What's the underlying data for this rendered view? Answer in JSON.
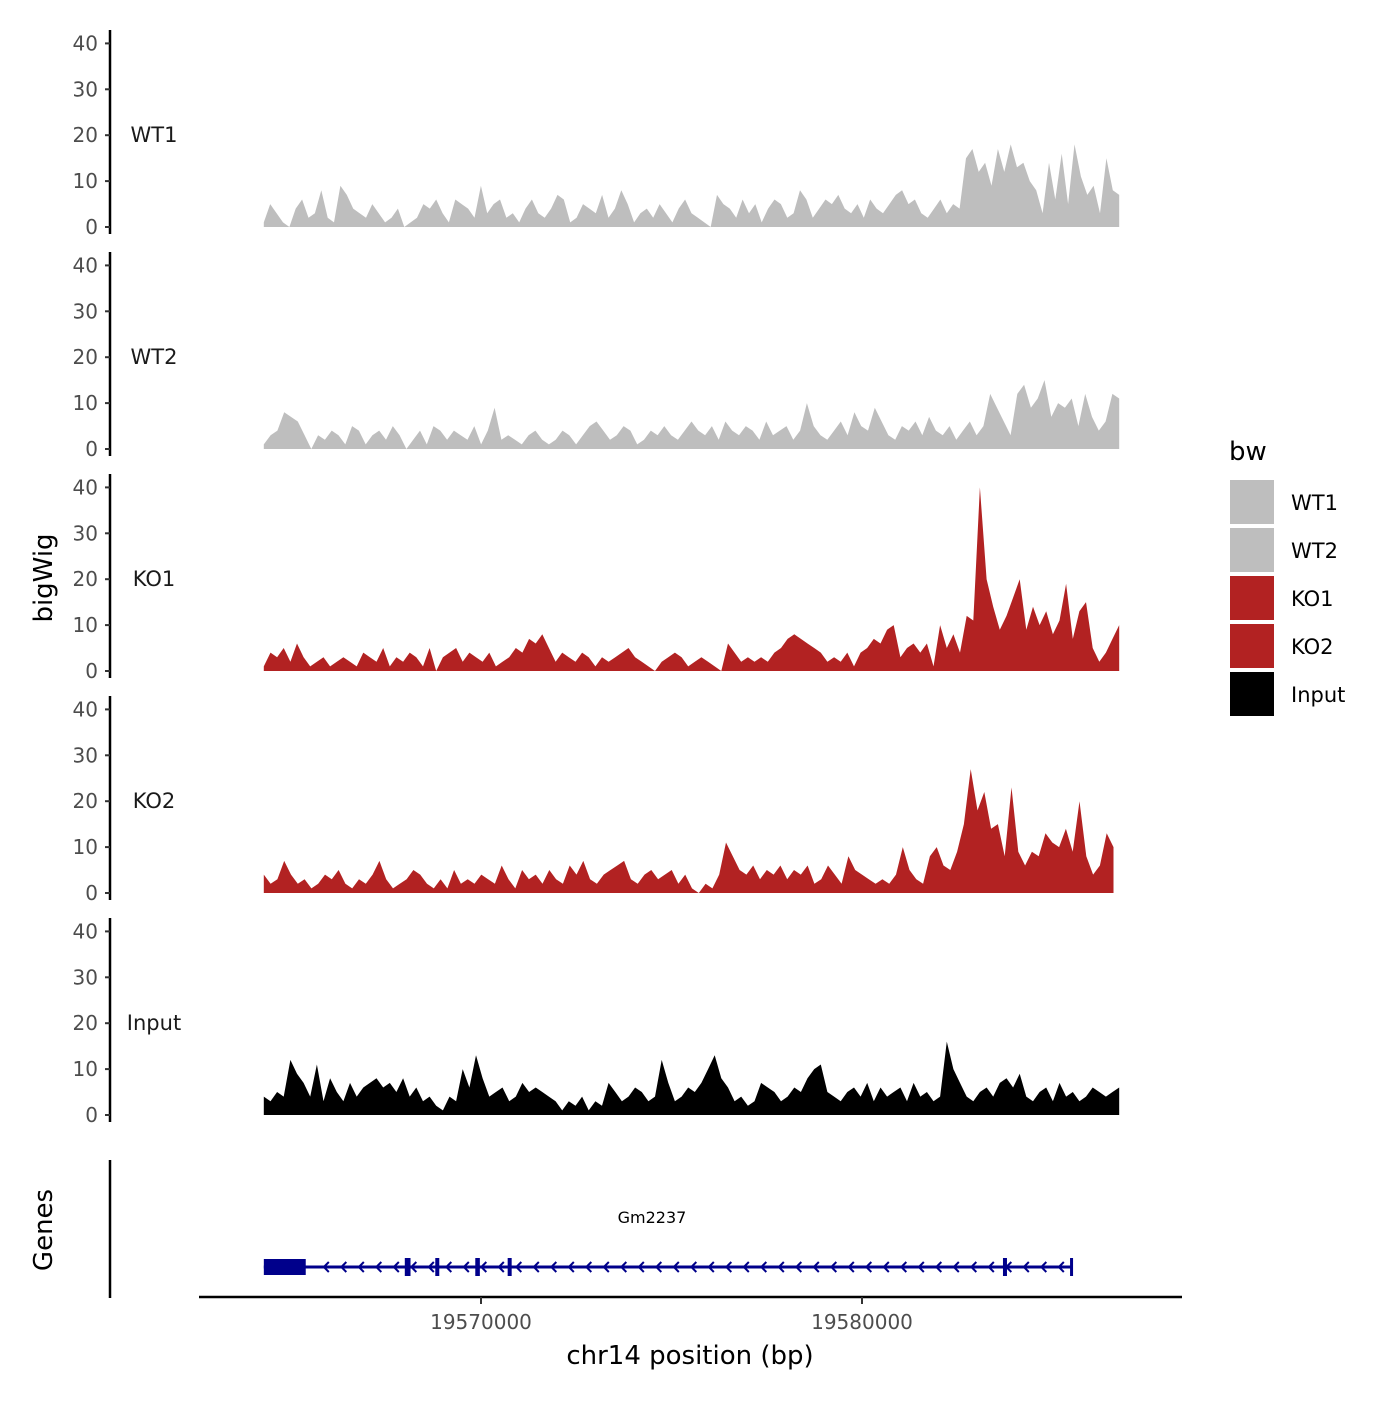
{
  "chart_data": {
    "type": "area",
    "title": "",
    "ylabel": "bigWig",
    "xlabel": "chr14 position (bp)",
    "genes_label": "Genes",
    "ylim": [
      0,
      40
    ],
    "y_ticks": [
      "0",
      "10",
      "20",
      "30",
      "40"
    ],
    "x_range": [
      19563000,
      19588000
    ],
    "x_ticks": [
      {
        "value": 19570000,
        "label": "19570000"
      },
      {
        "value": 19580000,
        "label": "19580000"
      }
    ],
    "legend": {
      "title": "bw",
      "position": "right",
      "entries": [
        {
          "label": "WT1",
          "color": "#bebebe"
        },
        {
          "label": "WT2",
          "color": "#bebebe"
        },
        {
          "label": "KO1",
          "color": "#b22222"
        },
        {
          "label": "KO2",
          "color": "#b22222"
        },
        {
          "label": "Input",
          "color": "#000000"
        }
      ]
    },
    "series": [
      {
        "name": "WT1",
        "color": "#bebebe",
        "x_start": 19564300,
        "x_end": 19586750,
        "values": [
          1,
          5,
          3,
          1,
          0,
          4,
          6,
          2,
          3,
          8,
          2,
          1,
          9,
          7,
          4,
          3,
          2,
          5,
          3,
          1,
          2,
          4,
          0,
          1,
          2,
          5,
          4,
          6,
          3,
          1,
          6,
          5,
          4,
          2,
          9,
          3,
          5,
          6,
          2,
          3,
          1,
          4,
          6,
          3,
          2,
          4,
          7,
          6,
          1,
          2,
          5,
          4,
          3,
          7,
          2,
          4,
          8,
          5,
          1,
          3,
          4,
          2,
          5,
          3,
          1,
          4,
          6,
          3,
          2,
          1,
          0,
          7,
          5,
          4,
          2,
          6,
          3,
          5,
          1,
          4,
          6,
          5,
          2,
          3,
          8,
          6,
          2,
          4,
          6,
          5,
          7,
          4,
          3,
          5,
          2,
          6,
          4,
          3,
          5,
          7,
          8,
          5,
          6,
          3,
          2,
          4,
          6,
          3,
          5,
          4,
          15,
          17,
          12,
          14,
          9,
          17,
          12,
          18,
          13,
          14,
          10,
          8,
          3,
          14,
          6,
          16,
          5,
          18,
          11,
          7,
          9,
          3,
          15,
          8,
          7
        ]
      },
      {
        "name": "WT2",
        "color": "#bebebe",
        "x_start": 19564300,
        "x_end": 19586750,
        "values": [
          1,
          3,
          4,
          8,
          7,
          6,
          3,
          0,
          3,
          2,
          4,
          3,
          1,
          5,
          4,
          1,
          3,
          4,
          2,
          5,
          3,
          0,
          2,
          4,
          1,
          5,
          4,
          2,
          4,
          3,
          2,
          5,
          1,
          4,
          9,
          2,
          3,
          2,
          1,
          3,
          4,
          2,
          1,
          2,
          4,
          3,
          1,
          3,
          5,
          6,
          4,
          2,
          3,
          5,
          4,
          1,
          2,
          4,
          3,
          5,
          3,
          2,
          4,
          6,
          4,
          3,
          5,
          2,
          6,
          4,
          3,
          5,
          4,
          2,
          6,
          3,
          4,
          5,
          2,
          4,
          10,
          5,
          3,
          2,
          4,
          6,
          3,
          8,
          5,
          4,
          9,
          6,
          3,
          2,
          5,
          4,
          6,
          3,
          7,
          4,
          3,
          5,
          2,
          4,
          6,
          3,
          5,
          12,
          9,
          6,
          3,
          12,
          14,
          9,
          11,
          15,
          7,
          10,
          9,
          11,
          5,
          12,
          7,
          4,
          6,
          12,
          11
        ]
      },
      {
        "name": "KO1",
        "color": "#b22222",
        "x_start": 19564300,
        "x_end": 19586750,
        "values": [
          1,
          4,
          3,
          5,
          2,
          6,
          3,
          1,
          2,
          3,
          1,
          2,
          3,
          2,
          1,
          4,
          3,
          2,
          5,
          1,
          3,
          2,
          4,
          3,
          1,
          5,
          0,
          3,
          4,
          5,
          2,
          4,
          3,
          2,
          4,
          1,
          2,
          3,
          5,
          4,
          7,
          6,
          8,
          5,
          2,
          4,
          3,
          2,
          4,
          3,
          1,
          3,
          2,
          3,
          4,
          5,
          3,
          2,
          1,
          0,
          2,
          3,
          4,
          3,
          1,
          2,
          3,
          2,
          1,
          0,
          6,
          4,
          2,
          3,
          2,
          3,
          2,
          4,
          5,
          7,
          8,
          7,
          6,
          5,
          4,
          2,
          3,
          2,
          4,
          1,
          4,
          5,
          7,
          6,
          9,
          10,
          3,
          5,
          6,
          4,
          6,
          1,
          10,
          5,
          8,
          4,
          12,
          11,
          40,
          20,
          14,
          9,
          12,
          16,
          20,
          9,
          14,
          10,
          13,
          8,
          11,
          19,
          7,
          13,
          15,
          5,
          2,
          4,
          7,
          10
        ]
      },
      {
        "name": "KO2",
        "color": "#b22222",
        "x_start": 19564300,
        "x_end": 19586600,
        "values": [
          4,
          2,
          3,
          7,
          4,
          2,
          3,
          1,
          2,
          4,
          3,
          5,
          2,
          1,
          3,
          2,
          4,
          7,
          3,
          1,
          2,
          3,
          5,
          4,
          2,
          1,
          3,
          1,
          5,
          2,
          3,
          2,
          4,
          3,
          2,
          6,
          3,
          1,
          5,
          3,
          4,
          2,
          5,
          3,
          2,
          6,
          4,
          7,
          3,
          2,
          4,
          5,
          6,
          7,
          3,
          2,
          4,
          5,
          3,
          4,
          5,
          2,
          4,
          1,
          0,
          2,
          1,
          4,
          11,
          8,
          5,
          4,
          6,
          3,
          5,
          4,
          6,
          3,
          5,
          4,
          6,
          2,
          3,
          6,
          4,
          2,
          8,
          5,
          4,
          3,
          2,
          3,
          2,
          4,
          10,
          5,
          3,
          2,
          8,
          10,
          6,
          5,
          9,
          15,
          27,
          18,
          22,
          14,
          15,
          8,
          23,
          9,
          6,
          9,
          8,
          13,
          11,
          10,
          14,
          9,
          20,
          8,
          4,
          6,
          13,
          10
        ]
      },
      {
        "name": "Input",
        "color": "#000000",
        "x_start": 19564300,
        "x_end": 19586750,
        "values": [
          4,
          3,
          5,
          4,
          12,
          9,
          7,
          4,
          11,
          3,
          8,
          5,
          3,
          7,
          4,
          6,
          7,
          8,
          6,
          7,
          5,
          8,
          4,
          6,
          3,
          4,
          2,
          1,
          4,
          3,
          10,
          6,
          13,
          8,
          4,
          5,
          6,
          3,
          4,
          7,
          5,
          6,
          5,
          4,
          3,
          1,
          3,
          2,
          4,
          1,
          3,
          2,
          7,
          5,
          3,
          4,
          6,
          5,
          3,
          4,
          12,
          7,
          3,
          4,
          6,
          5,
          7,
          10,
          13,
          8,
          6,
          3,
          4,
          2,
          3,
          7,
          6,
          5,
          3,
          4,
          6,
          5,
          8,
          10,
          11,
          5,
          4,
          3,
          5,
          6,
          4,
          7,
          3,
          6,
          4,
          5,
          6,
          3,
          7,
          4,
          5,
          3,
          4,
          16,
          10,
          7,
          4,
          3,
          5,
          6,
          4,
          7,
          8,
          6,
          9,
          4,
          3,
          5,
          6,
          3,
          7,
          4,
          5,
          3,
          4,
          6,
          5,
          4,
          5,
          6
        ]
      }
    ],
    "gene_track": {
      "gene_name": "Gm2237",
      "color": "#00008b",
      "strand": "-",
      "start": 19564300,
      "end": 19585500,
      "exons": [
        {
          "start": 19564300,
          "end": 19565400,
          "kind": "utr"
        },
        {
          "start": 19568000,
          "end": 19568150,
          "kind": "cds"
        },
        {
          "start": 19568800,
          "end": 19568900,
          "kind": "cds"
        },
        {
          "start": 19569850,
          "end": 19569970,
          "kind": "cds"
        },
        {
          "start": 19570700,
          "end": 19570800,
          "kind": "cds"
        },
        {
          "start": 19583700,
          "end": 19583800,
          "kind": "cds"
        }
      ]
    }
  }
}
